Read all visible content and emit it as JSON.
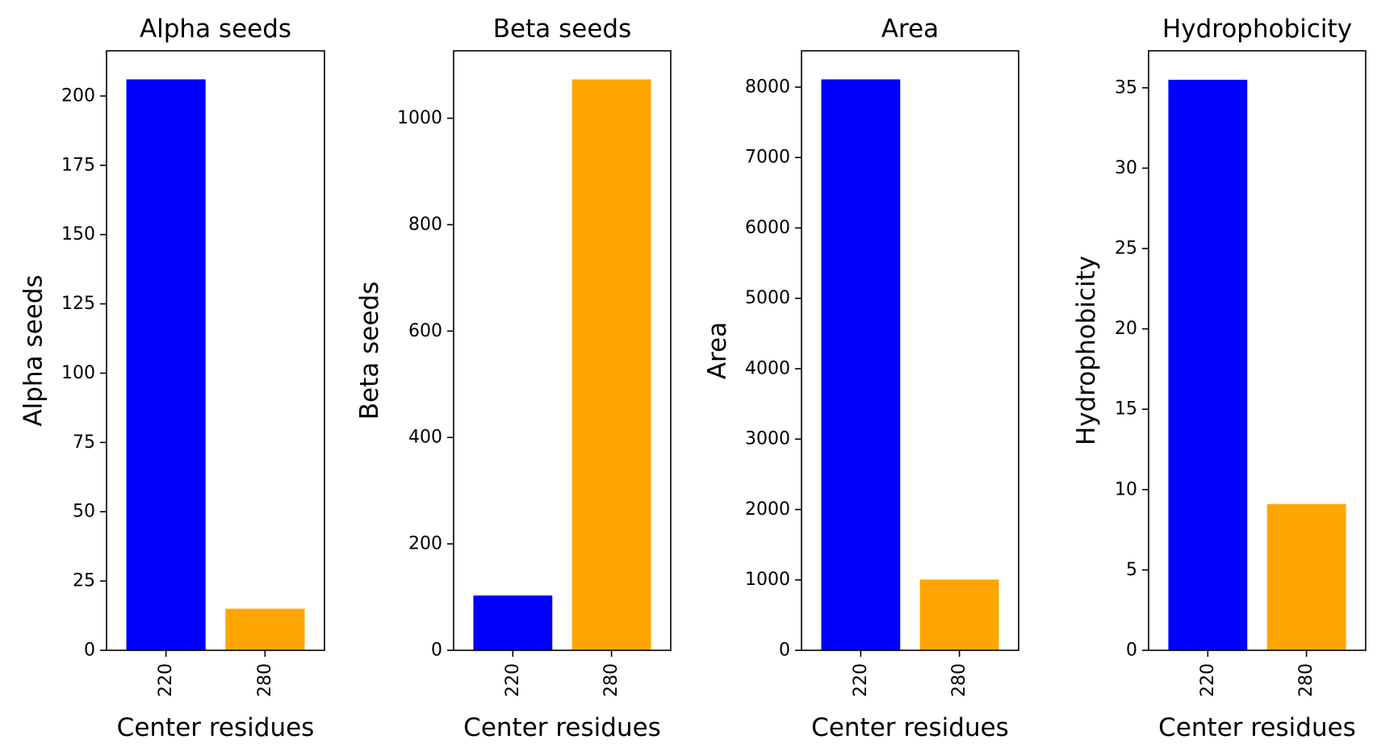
{
  "chart_data": [
    {
      "type": "bar",
      "title": "Alpha seeds",
      "xlabel": "Center residues",
      "ylabel": "Alpha seeds",
      "categories": [
        "220",
        "280"
      ],
      "values": [
        206,
        15
      ],
      "colors": [
        "#0000ff",
        "#ffa500"
      ],
      "ylim": [
        0,
        216.3
      ],
      "yticks": [
        0,
        25,
        50,
        75,
        100,
        125,
        150,
        175,
        200
      ],
      "grid": false,
      "legend": "none"
    },
    {
      "type": "bar",
      "title": "Beta seeds",
      "xlabel": "Center residues",
      "ylabel": "Beta seeds",
      "categories": [
        "220",
        "280"
      ],
      "values": [
        103,
        1073
      ],
      "colors": [
        "#0000ff",
        "#ffa500"
      ],
      "ylim": [
        0,
        1126.7
      ],
      "yticks": [
        0,
        200,
        400,
        600,
        800,
        1000
      ],
      "grid": false,
      "legend": "none"
    },
    {
      "type": "bar",
      "title": "Area",
      "xlabel": "Center residues",
      "ylabel": "Area",
      "categories": [
        "220",
        "280"
      ],
      "values": [
        8110,
        1005
      ],
      "colors": [
        "#0000ff",
        "#ffa500"
      ],
      "ylim": [
        0,
        8515.5
      ],
      "yticks": [
        0,
        1000,
        2000,
        3000,
        4000,
        5000,
        6000,
        7000,
        8000
      ],
      "grid": false,
      "legend": "none"
    },
    {
      "type": "bar",
      "title": "Hydrophobicity",
      "xlabel": "Center residues",
      "ylabel": "Hydrophobicity",
      "categories": [
        "220",
        "280"
      ],
      "values": [
        35.5,
        9.1
      ],
      "colors": [
        "#0000ff",
        "#ffa500"
      ],
      "ylim": [
        0,
        37.3
      ],
      "yticks": [
        0,
        5,
        10,
        15,
        20,
        25,
        30,
        35
      ],
      "grid": false,
      "legend": "none"
    }
  ]
}
